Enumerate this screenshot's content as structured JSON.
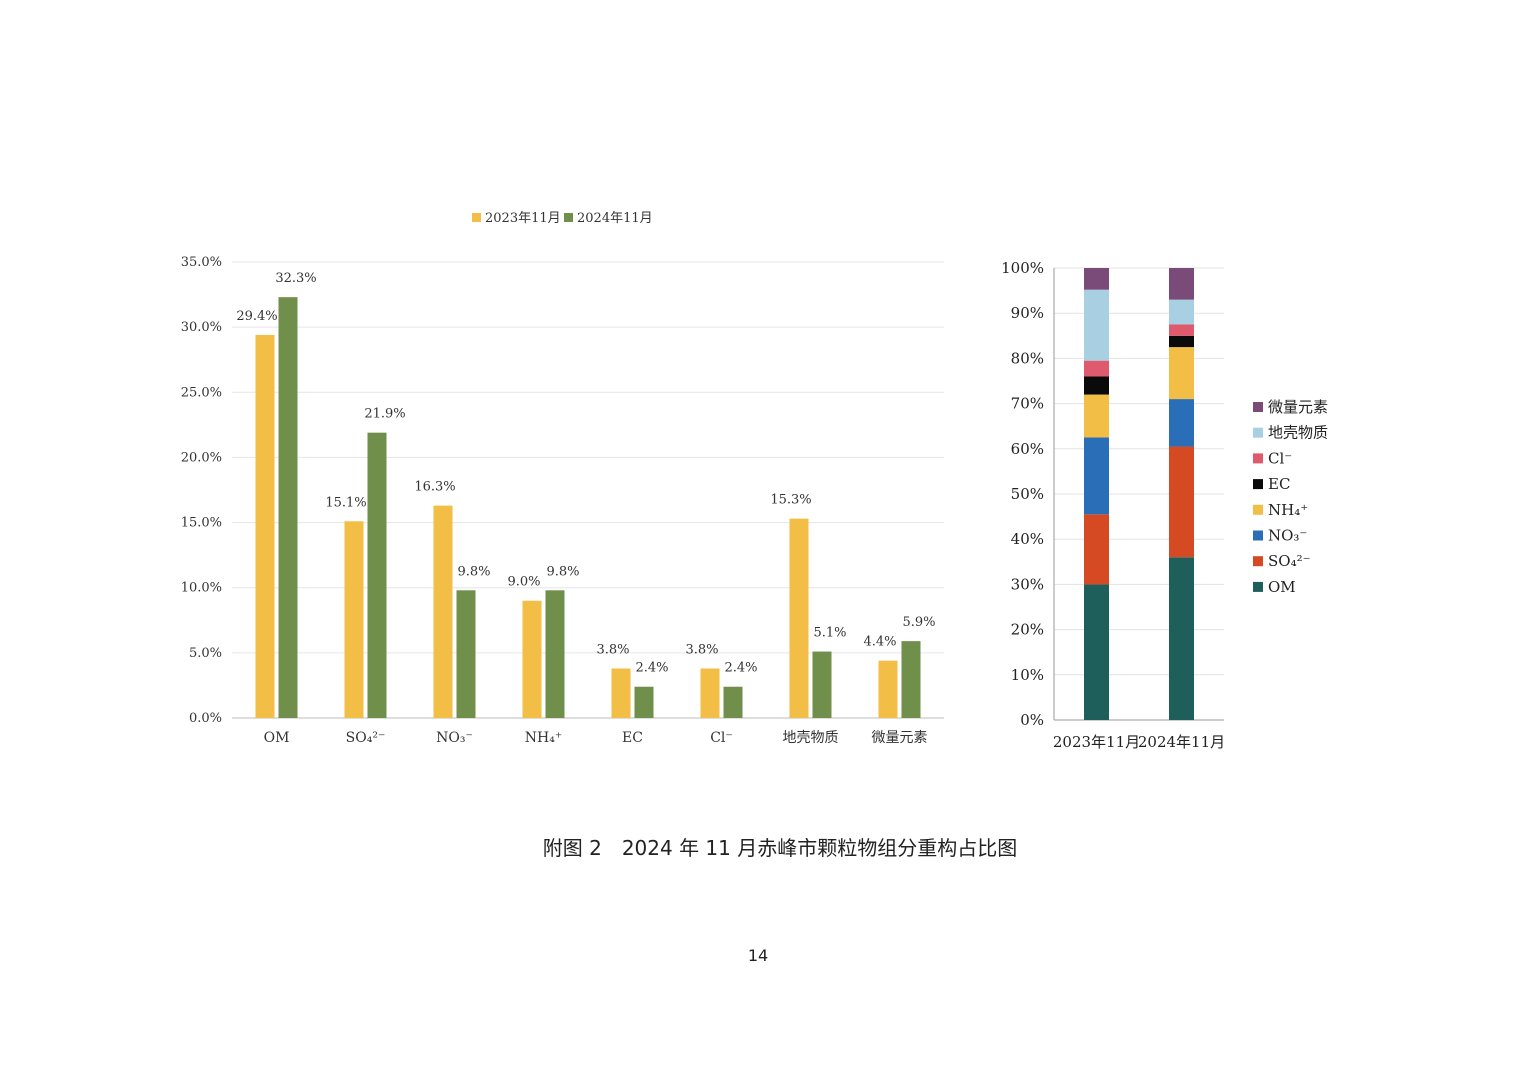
{
  "figure": {
    "caption": "附图 2　2024 年 11 月赤峰市颗粒物组分重构占比图",
    "page_number": "14"
  },
  "chart_data": [
    {
      "type": "bar",
      "categories": [
        "OM",
        "SO₄²⁻",
        "NO₃⁻",
        "NH₄⁺",
        "EC",
        "Cl⁻",
        "地壳物质",
        "微量元素"
      ],
      "series": [
        {
          "name": "2023年11月",
          "values": [
            29.4,
            15.1,
            16.3,
            9.0,
            3.8,
            3.8,
            15.3,
            4.4
          ],
          "labels": [
            "29.4%",
            "15.1%",
            "16.3%",
            "9.0%",
            "3.8%",
            "3.8%",
            "15.3%",
            "4.4%"
          ],
          "color": "#F2BE45"
        },
        {
          "name": "2024年11月",
          "values": [
            32.3,
            21.9,
            9.8,
            9.8,
            2.4,
            2.4,
            5.1,
            5.9
          ],
          "labels": [
            "32.3%",
            "21.9%",
            "9.8%",
            "9.8%",
            "2.4%",
            "2.4%",
            "5.1%",
            "5.9%"
          ],
          "color": "#6F8F4B"
        }
      ],
      "ylim": [
        0,
        35
      ],
      "yticks": [
        "0.0%",
        "5.0%",
        "10.0%",
        "15.0%",
        "20.0%",
        "25.0%",
        "30.0%",
        "35.0%"
      ],
      "grid": true,
      "legend_position": "top"
    },
    {
      "type": "bar",
      "stacked": true,
      "categories": [
        "2023年11月",
        "2024年11月"
      ],
      "series": [
        {
          "name": "OM",
          "values": [
            30.0,
            36.0
          ],
          "color": "#1F5F5B"
        },
        {
          "name": "SO₄²⁻",
          "values": [
            15.5,
            24.5
          ],
          "color": "#D64A23"
        },
        {
          "name": "NO₃⁻",
          "values": [
            17.0,
            10.5
          ],
          "color": "#2A6EB8"
        },
        {
          "name": "NH₄⁺",
          "values": [
            9.5,
            11.5
          ],
          "color": "#F2BE45"
        },
        {
          "name": "EC",
          "values": [
            4.0,
            2.5
          ],
          "color": "#0A0A0A"
        },
        {
          "name": "Cl⁻",
          "values": [
            3.5,
            2.5
          ],
          "color": "#E05A6E"
        },
        {
          "name": "地壳物质",
          "values": [
            15.7,
            5.5
          ],
          "color": "#A9CFE2"
        },
        {
          "name": "微量元素",
          "values": [
            4.8,
            7.0
          ],
          "color": "#7A4A78"
        }
      ],
      "legend_order": [
        "微量元素",
        "地壳物质",
        "Cl⁻",
        "EC",
        "NH₄⁺",
        "NO₃⁻",
        "SO₄²⁻",
        "OM"
      ],
      "ylim": [
        0,
        100
      ],
      "yticks": [
        "0%",
        "10%",
        "20%",
        "30%",
        "40%",
        "50%",
        "60%",
        "70%",
        "80%",
        "90%",
        "100%"
      ],
      "grid": true,
      "legend_position": "right"
    }
  ]
}
